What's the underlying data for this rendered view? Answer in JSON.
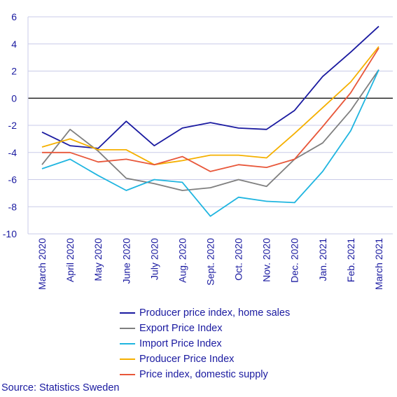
{
  "chart_data": {
    "type": "line",
    "categories": [
      "March 2020",
      "April 2020",
      "May 2020",
      "June 2020",
      "July 2020",
      "Aug. 2020",
      "Sept. 2020",
      "Oct. 2020",
      "Nov. 2020",
      "Dec. 2020",
      "Jan. 2021",
      "Feb. 2021",
      "March 2021"
    ],
    "ylim": [
      -10,
      6
    ],
    "yticks": [
      "6",
      "4",
      "2",
      "0",
      "-2",
      "-4",
      "-6",
      "-8",
      "-10"
    ],
    "ytick_values": [
      6,
      4,
      2,
      0,
      -2,
      -4,
      -6,
      -8,
      -10
    ],
    "grid": true,
    "legend_position": "bottom",
    "series": [
      {
        "name": "Producer price index, home sales",
        "color": "#1a1aa0",
        "values": [
          -2.5,
          -3.5,
          -3.7,
          -1.7,
          -3.5,
          -2.2,
          -1.8,
          -2.2,
          -2.3,
          -0.9,
          1.6,
          3.4,
          5.3
        ]
      },
      {
        "name": "Export Price Index",
        "color": "#7f7f7f",
        "values": [
          -4.9,
          -2.3,
          -3.9,
          -5.9,
          -6.3,
          -6.8,
          -6.6,
          -6.0,
          -6.5,
          -4.5,
          -3.3,
          -0.9,
          2.1
        ]
      },
      {
        "name": "Import Price Index",
        "color": "#1fb5e0",
        "values": [
          -5.2,
          -4.5,
          -5.7,
          -6.8,
          -6.0,
          -6.2,
          -8.7,
          -7.3,
          -7.6,
          -7.7,
          -5.4,
          -2.4,
          2.1
        ]
      },
      {
        "name": "Producer Price Index",
        "color": "#f5b000",
        "values": [
          -3.6,
          -3.0,
          -3.8,
          -3.8,
          -4.9,
          -4.6,
          -4.2,
          -4.2,
          -4.4,
          -2.6,
          -0.7,
          1.2,
          3.8
        ]
      },
      {
        "name": "Price index, domestic supply",
        "color": "#e8573a",
        "values": [
          -4.0,
          -4.0,
          -4.7,
          -4.5,
          -4.9,
          -4.3,
          -5.4,
          -4.9,
          -5.1,
          -4.5,
          -2.1,
          0.4,
          3.7
        ]
      }
    ]
  },
  "source": "Source: Statistics Sweden"
}
